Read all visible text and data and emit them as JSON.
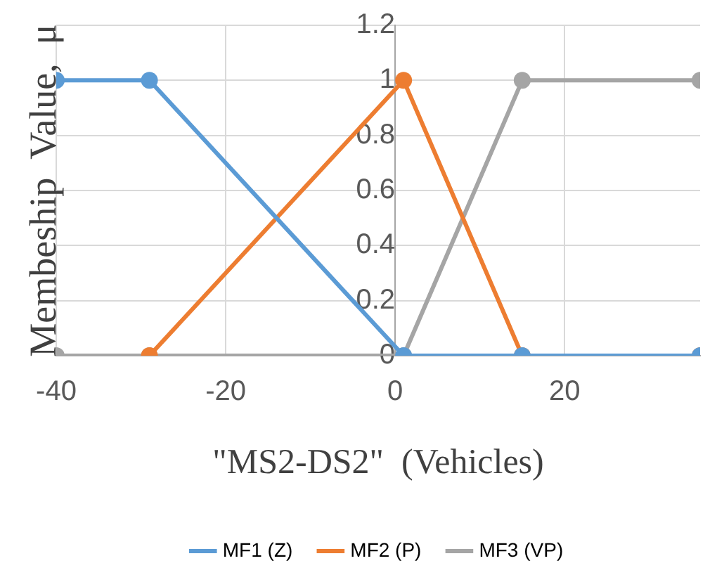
{
  "chart_data": {
    "type": "line",
    "xlabel": "\"MS2-DS2\"  (Vehicles)",
    "ylabel": "Membeship  Value,  μ",
    "xlim": [
      -40,
      36
    ],
    "xticks": [
      -40,
      -20,
      0,
      20
    ],
    "ylim": [
      0,
      1.2
    ],
    "yticks": [
      0,
      0.2,
      0.4,
      0.6,
      0.8,
      1,
      1.2
    ],
    "grid": true,
    "legend": "bottom",
    "marker": "circle",
    "line_style": "solid",
    "series": [
      {
        "name": "MF1 (Z)",
        "color": "#5b9bd5",
        "x": [
          -40,
          -29,
          1,
          15,
          36
        ],
        "values": [
          1,
          1,
          0,
          0,
          0
        ]
      },
      {
        "name": "MF2 (P)",
        "color": "#ed7d31",
        "x": [
          -29,
          1,
          15,
          36
        ],
        "values": [
          0,
          1,
          0,
          0
        ]
      },
      {
        "name": "MF3 (VP)",
        "color": "#a5a5a5",
        "x": [
          -40,
          -29,
          1,
          15,
          36
        ],
        "values": [
          0,
          0,
          0,
          1,
          1
        ]
      }
    ]
  }
}
